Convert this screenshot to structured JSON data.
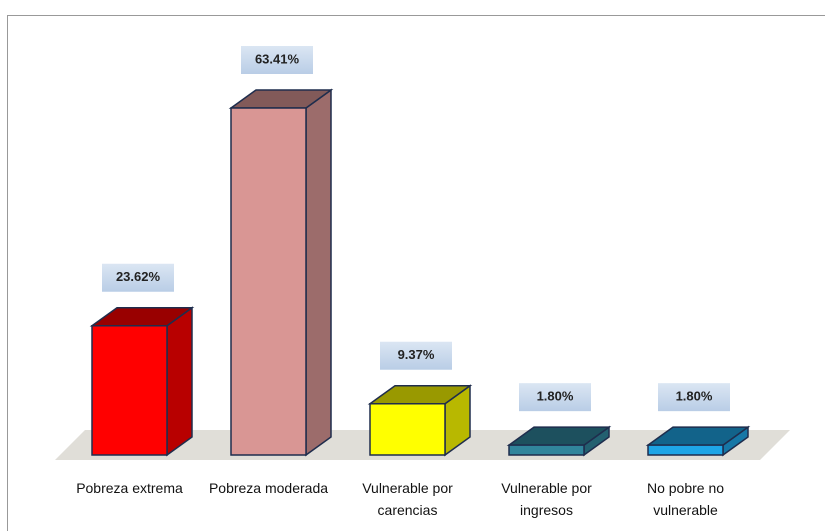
{
  "chart_data": {
    "type": "bar3d",
    "categories": [
      "Pobreza extrema",
      "Pobreza moderada",
      "Vulnerable por carencias",
      "Vulnerable por ingresos",
      "No pobre no vulnerable"
    ],
    "values": [
      23.62,
      63.41,
      9.37,
      1.8,
      1.8
    ],
    "value_labels": [
      "23.62%",
      "63.41%",
      "9.37%",
      "1.80%",
      "1.80%"
    ],
    "colors": [
      "#ff0000",
      "#d99694",
      "#ffff00",
      "#31859c",
      "#1ea5e6"
    ]
  }
}
